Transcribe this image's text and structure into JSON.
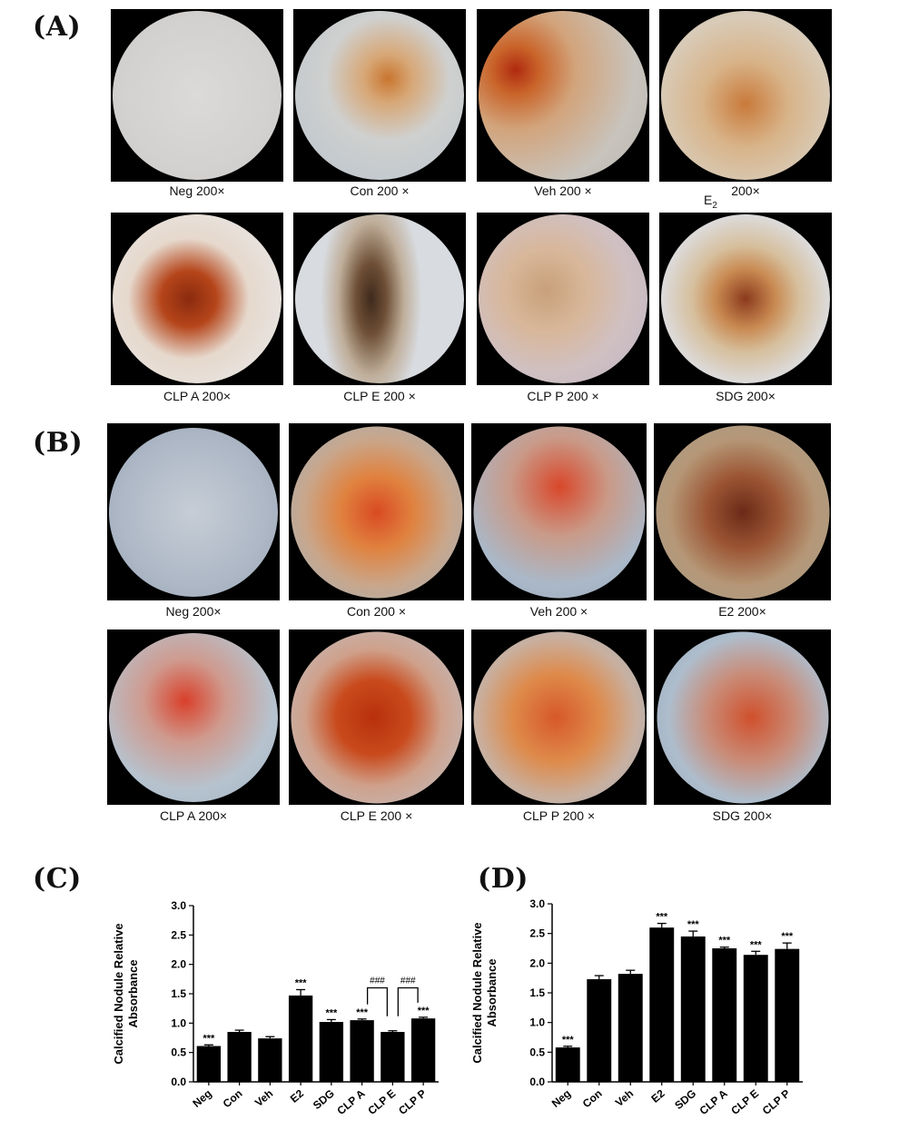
{
  "panels": {
    "a": "(A)",
    "b": "(B)",
    "c": "(C)",
    "d": "(D)"
  },
  "panel_a": {
    "captions": [
      "Neg 200×",
      "Con 200 ×",
      "Veh 200 ×",
      "200×",
      "CLP A 200×",
      "CLP E 200 ×",
      "CLP P 200 ×",
      "SDG 200×"
    ],
    "e2_label": "E",
    "e2_sub": "2"
  },
  "panel_b": {
    "captions": [
      "Neg 200×",
      "Con 200 ×",
      "Veh 200 ×",
      "E2 200×",
      "CLP A 200×",
      "CLP E 200 ×",
      "CLP P 200 ×",
      "SDG 200×"
    ]
  },
  "chart_data": [
    {
      "type": "bar",
      "panel": "(C)",
      "ylabel": "Calcified Nodule Relative Absorbance",
      "ylim": [
        0,
        3.0
      ],
      "yticks": [
        "0.0",
        "0.5",
        "1.0",
        "1.5",
        "2.0",
        "2.5",
        "3.0"
      ],
      "categories": [
        "Neg",
        "Con",
        "Veh",
        "E2",
        "SDG",
        "CLP A",
        "CLP E",
        "CLP P"
      ],
      "values": [
        0.61,
        0.85,
        0.74,
        1.47,
        1.02,
        1.05,
        0.85,
        1.08
      ],
      "errors": [
        0.02,
        0.03,
        0.03,
        0.1,
        0.04,
        0.02,
        0.02,
        0.02
      ],
      "significance": [
        "***",
        "",
        "",
        "***",
        "***",
        "***",
        "",
        "***"
      ],
      "brackets": [
        {
          "from": "CLP A",
          "to": "CLP E",
          "label": "###"
        },
        {
          "from": "CLP E",
          "to": "CLP P",
          "label": "###"
        }
      ],
      "bar_color": "#000000"
    },
    {
      "type": "bar",
      "panel": "(D)",
      "ylabel": "Calcified Nodule Relative Absorbance",
      "ylim": [
        0,
        3.0
      ],
      "yticks": [
        "0.0",
        "0.5",
        "1.0",
        "1.5",
        "2.0",
        "2.5",
        "3.0"
      ],
      "categories": [
        "Neg",
        "Con",
        "Veh",
        "E2",
        "SDG",
        "CLP A",
        "CLP E",
        "CLP P"
      ],
      "values": [
        0.58,
        1.73,
        1.82,
        2.6,
        2.45,
        2.25,
        2.14,
        2.24
      ],
      "errors": [
        0.02,
        0.06,
        0.06,
        0.07,
        0.09,
        0.02,
        0.06,
        0.1
      ],
      "significance": [
        "***",
        "",
        "",
        "***",
        "***",
        "***",
        "***",
        "***"
      ],
      "brackets": [],
      "bar_color": "#000000"
    }
  ]
}
